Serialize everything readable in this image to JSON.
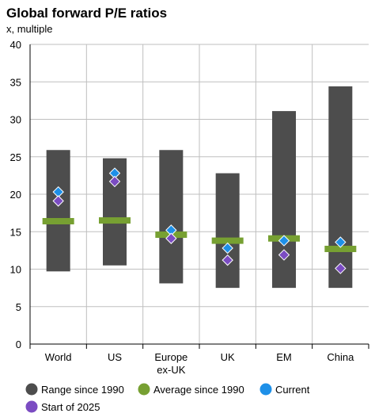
{
  "chart_data": {
    "type": "bar",
    "title": "Global forward P/E ratios",
    "subtitle": "x, multiple",
    "categories": [
      [
        "World"
      ],
      [
        "US"
      ],
      [
        "Europe",
        "ex-UK"
      ],
      [
        "UK"
      ],
      [
        "EM"
      ],
      [
        "China"
      ]
    ],
    "ylim": [
      0,
      40
    ],
    "yticks": [
      0,
      5,
      10,
      15,
      20,
      25,
      30,
      35,
      40
    ],
    "grid": true,
    "legend_position": "bottom",
    "series": [
      {
        "name": "Range since 1990",
        "kind": "range",
        "color": "#4d4d4d",
        "low": [
          9.7,
          10.5,
          8.1,
          7.5,
          7.5,
          7.5
        ],
        "high": [
          25.9,
          24.8,
          25.9,
          22.8,
          31.1,
          34.4
        ]
      },
      {
        "name": "Average since 1990",
        "kind": "dash",
        "color": "#77a032",
        "values": [
          16.4,
          16.5,
          14.6,
          13.8,
          14.1,
          12.7
        ]
      },
      {
        "name": "Current",
        "kind": "diamond",
        "color": "#1e90e8",
        "values": [
          20.3,
          22.8,
          15.2,
          12.8,
          13.8,
          13.6
        ]
      },
      {
        "name": "Start of 2025",
        "kind": "diamond",
        "color": "#7b4cc2",
        "values": [
          19.1,
          21.7,
          14.1,
          11.2,
          11.9,
          10.1
        ]
      }
    ]
  }
}
